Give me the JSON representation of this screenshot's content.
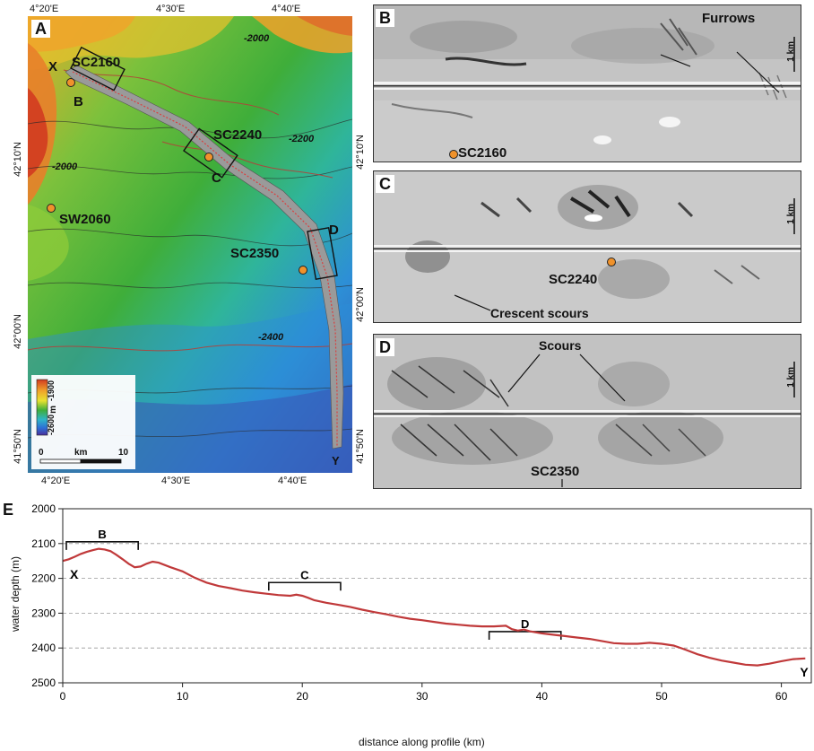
{
  "panel_a": {
    "letter": "A",
    "top_labels": [
      "4°20'E",
      "4°30'E",
      "4°40'E"
    ],
    "bottom_labels": [
      "4°20'E",
      "4°30'E",
      "4°40'E"
    ],
    "left_labels": [
      "42°10'N",
      "42°00'N",
      "41°50'N"
    ],
    "right_labels": [
      "42°10'N",
      "42°00'N",
      "41°50'N"
    ],
    "contours": [
      "-2000",
      "-2200",
      "-2000",
      "-2400"
    ],
    "sites": [
      "SC2160",
      "SC2240",
      "SW2060",
      "SC2350"
    ],
    "box_labels": [
      "B",
      "C",
      "D"
    ],
    "endpoints": [
      "X",
      "Y"
    ],
    "legend": {
      "max": "-1900",
      "min": "-2600",
      "unit": "m",
      "scale_unit": "km",
      "scale_start": "0",
      "scale_end": "10"
    },
    "colors": {
      "shallow": "#d23b20",
      "mid": "#3fae3a",
      "deep": "#3a4fb3"
    }
  },
  "panel_b": {
    "letter": "B",
    "label": "Furrows",
    "site": "SC2160",
    "scale": "1 km"
  },
  "panel_c": {
    "letter": "C",
    "label": "Crescent scours",
    "site": "SC2240",
    "scale": "1 km"
  },
  "panel_d": {
    "letter": "D",
    "label": "Scours",
    "site": "SC2350",
    "scale": "1 km"
  },
  "panel_e": {
    "letter": "E",
    "ylabel": "water depth (m)",
    "xlabel": "distance along profile (km)",
    "start_label": "X",
    "end_label": "Y",
    "brackets": [
      {
        "label": "B",
        "x0": 0.3,
        "x1": 6.3,
        "y": 2095
      },
      {
        "label": "C",
        "x0": 17.2,
        "x1": 23.2,
        "y": 2212
      },
      {
        "label": "D",
        "x0": 35.6,
        "x1": 41.6,
        "y": 2353
      }
    ]
  },
  "chart_data": {
    "type": "line",
    "title": "",
    "xlabel": "distance along profile (km)",
    "ylabel": "water depth (m)",
    "xlim": [
      0,
      62.5
    ],
    "ylim": [
      2000,
      2500
    ],
    "y_inverted": true,
    "grid": true,
    "x_ticks": [
      0,
      10,
      20,
      30,
      40,
      50,
      60
    ],
    "y_ticks": [
      2000,
      2100,
      2200,
      2300,
      2400,
      2500
    ],
    "series": [
      {
        "color": "#c0393a",
        "x": [
          0,
          0.5,
          1,
          1.5,
          2,
          2.5,
          3,
          3.5,
          4,
          4.5,
          5,
          5.5,
          6,
          6.5,
          7,
          7.5,
          8,
          9,
          10,
          11,
          12,
          13,
          14,
          15,
          16,
          17,
          18,
          19,
          19.5,
          20,
          20.5,
          21,
          22,
          23,
          24,
          25,
          26,
          27,
          28,
          29,
          30,
          31,
          32,
          33,
          34,
          35,
          36,
          37,
          37.5,
          38,
          38.5,
          39,
          40,
          41,
          42,
          43,
          44,
          45,
          46,
          47,
          48,
          49,
          50,
          51,
          52,
          53,
          54,
          55,
          56,
          57,
          58,
          59,
          60,
          61,
          62
        ],
        "y": [
          2150,
          2145,
          2138,
          2130,
          2124,
          2119,
          2115,
          2117,
          2122,
          2133,
          2145,
          2158,
          2168,
          2166,
          2158,
          2152,
          2155,
          2168,
          2180,
          2198,
          2212,
          2222,
          2228,
          2235,
          2240,
          2244,
          2248,
          2250,
          2247,
          2250,
          2256,
          2263,
          2270,
          2276,
          2282,
          2290,
          2297,
          2303,
          2310,
          2316,
          2320,
          2325,
          2330,
          2333,
          2336,
          2338,
          2338,
          2336,
          2346,
          2350,
          2347,
          2352,
          2358,
          2362,
          2366,
          2370,
          2374,
          2380,
          2386,
          2388,
          2388,
          2385,
          2388,
          2393,
          2405,
          2418,
          2428,
          2436,
          2442,
          2448,
          2450,
          2445,
          2438,
          2432,
          2430
        ]
      }
    ]
  }
}
